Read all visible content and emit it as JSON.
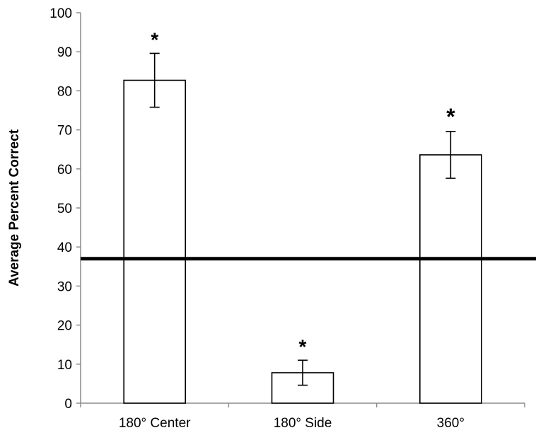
{
  "chart_data": {
    "type": "bar",
    "categories": [
      "180° Center",
      "180° Side",
      "360°"
    ],
    "values": [
      82.7,
      7.8,
      63.6
    ],
    "error": [
      6.9,
      3.2,
      6.0
    ],
    "annotations": [
      "*",
      "*",
      "*"
    ],
    "reference_line": 37,
    "title": "",
    "xlabel": "",
    "ylabel": "Average Percent Correct",
    "ylim": [
      0,
      100
    ],
    "yticks": [
      "0",
      "10",
      "20",
      "30",
      "40",
      "50",
      "60",
      "70",
      "80",
      "90",
      "100"
    ],
    "grid": false,
    "bar_fill": "#ffffff",
    "bar_stroke": "#000000",
    "reference_line_color": "#000000"
  }
}
